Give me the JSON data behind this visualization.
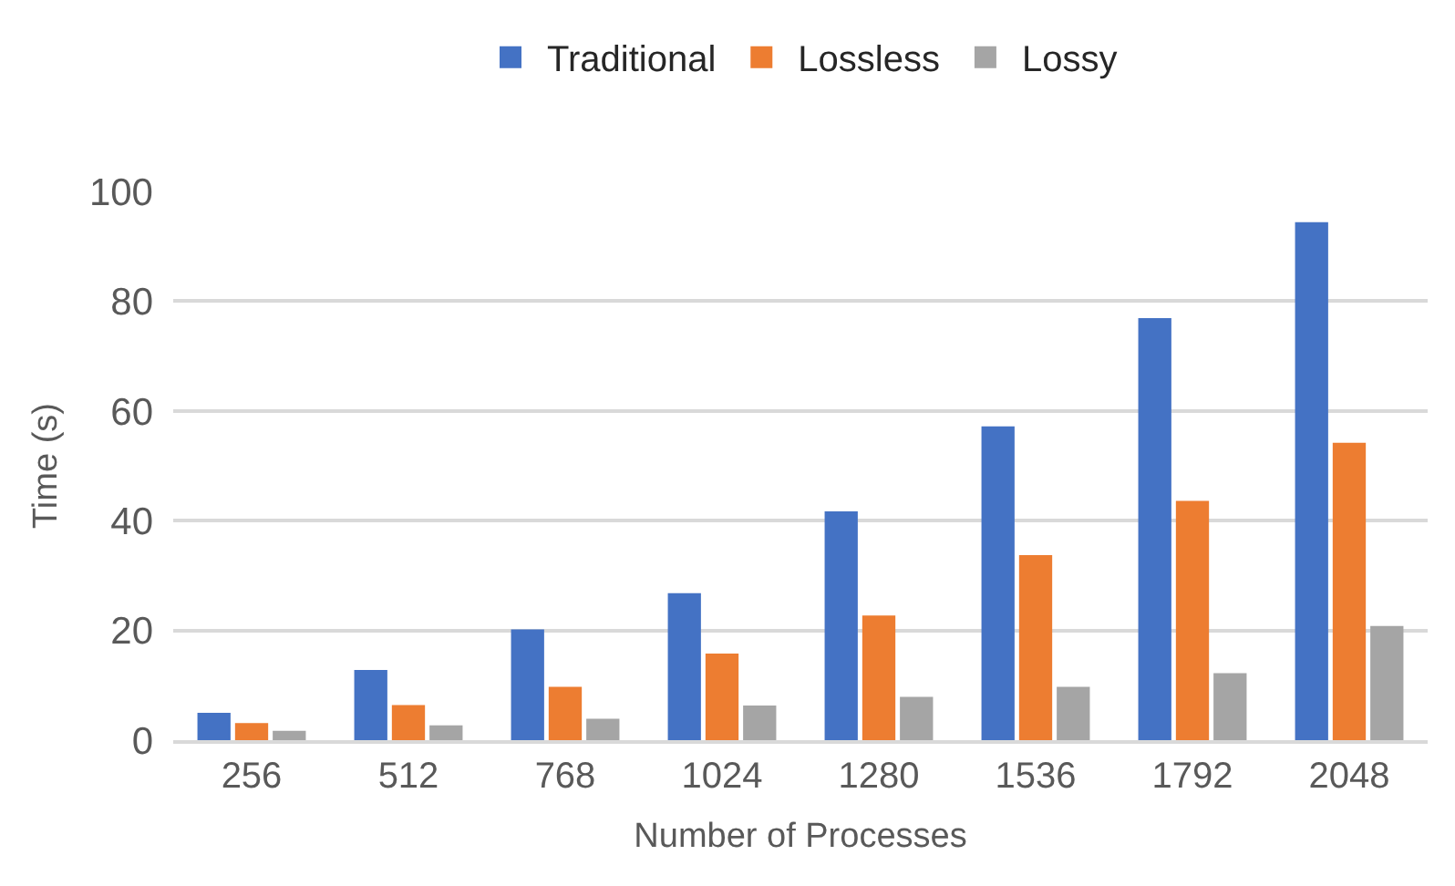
{
  "chart_data": {
    "type": "bar",
    "xlabel": "Number of Processes",
    "ylabel": "Time (s)",
    "categories": [
      "256",
      "512",
      "768",
      "1024",
      "1280",
      "1536",
      "1792",
      "2048"
    ],
    "series": [
      {
        "name": "Traditional",
        "color": "#4472c4",
        "values": [
          5,
          12.8,
          20.2,
          26.8,
          41.7,
          57.2,
          76.9,
          94.4
        ]
      },
      {
        "name": "Lossless",
        "color": "#ed7d31",
        "values": [
          3.1,
          6.4,
          9.7,
          15.8,
          22.7,
          33.7,
          43.6,
          54.2
        ]
      },
      {
        "name": "Lossy",
        "color": "#a5a5a5",
        "values": [
          1.7,
          2.7,
          3.9,
          6.3,
          7.9,
          9.7,
          12.2,
          20.8
        ]
      }
    ],
    "ylim": [
      0,
      100
    ],
    "yticks": [
      0,
      20,
      40,
      60,
      80,
      100
    ],
    "grid": "y",
    "legend": "top"
  }
}
